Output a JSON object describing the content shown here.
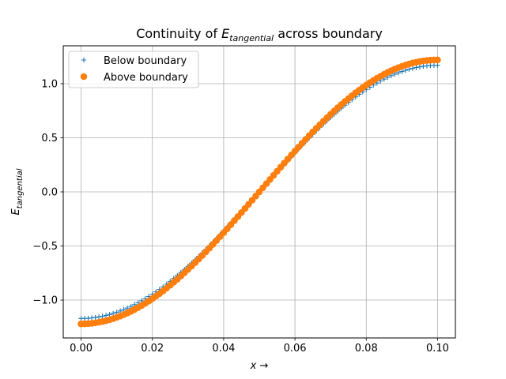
{
  "chart_data": {
    "type": "line",
    "title": "Continuity of E_tangential across boundary",
    "title_parts": {
      "prefix": "Continuity of ",
      "symbol": "E",
      "subscript": "tangential",
      "suffix": " across boundary"
    },
    "xlabel": "x →",
    "xlabel_parts": {
      "symbol": "x",
      "suffix": " →"
    },
    "ylabel": "E_tangential",
    "ylabel_parts": {
      "symbol": "E",
      "subscript": "tangential"
    },
    "xlim": [
      -0.005,
      0.105
    ],
    "ylim": [
      -1.35,
      1.35
    ],
    "x_ticks": [
      0.0,
      0.02,
      0.04,
      0.06,
      0.08,
      0.1
    ],
    "x_tick_labels": [
      "0.00",
      "0.02",
      "0.04",
      "0.06",
      "0.08",
      "0.10"
    ],
    "y_ticks": [
      -1.0,
      -0.5,
      0.0,
      0.5,
      1.0
    ],
    "y_tick_labels": [
      "−1.0",
      "−0.5",
      "0.0",
      "0.5",
      "1.0"
    ],
    "grid": true,
    "legend_position": "top-left",
    "x_range": [
      0.0,
      0.1
    ],
    "n_points": 101,
    "series": [
      {
        "name": "Below boundary",
        "marker": "+",
        "color": "#1f77b4",
        "model": "-A*cos(pi*x/0.1)",
        "amplitude": 1.17,
        "x_start": 0.0,
        "x_end": 0.1,
        "y_start": -1.17,
        "y_mid": 0.0,
        "y_end": 1.17
      },
      {
        "name": "Above boundary",
        "marker": "o",
        "color": "#ff7f0e",
        "model": "-A*cos(pi*x/0.1)",
        "amplitude": 1.22,
        "x_start": 0.0,
        "x_end": 0.1,
        "y_start": -1.22,
        "y_mid": 0.0,
        "y_end": 1.22
      }
    ]
  }
}
